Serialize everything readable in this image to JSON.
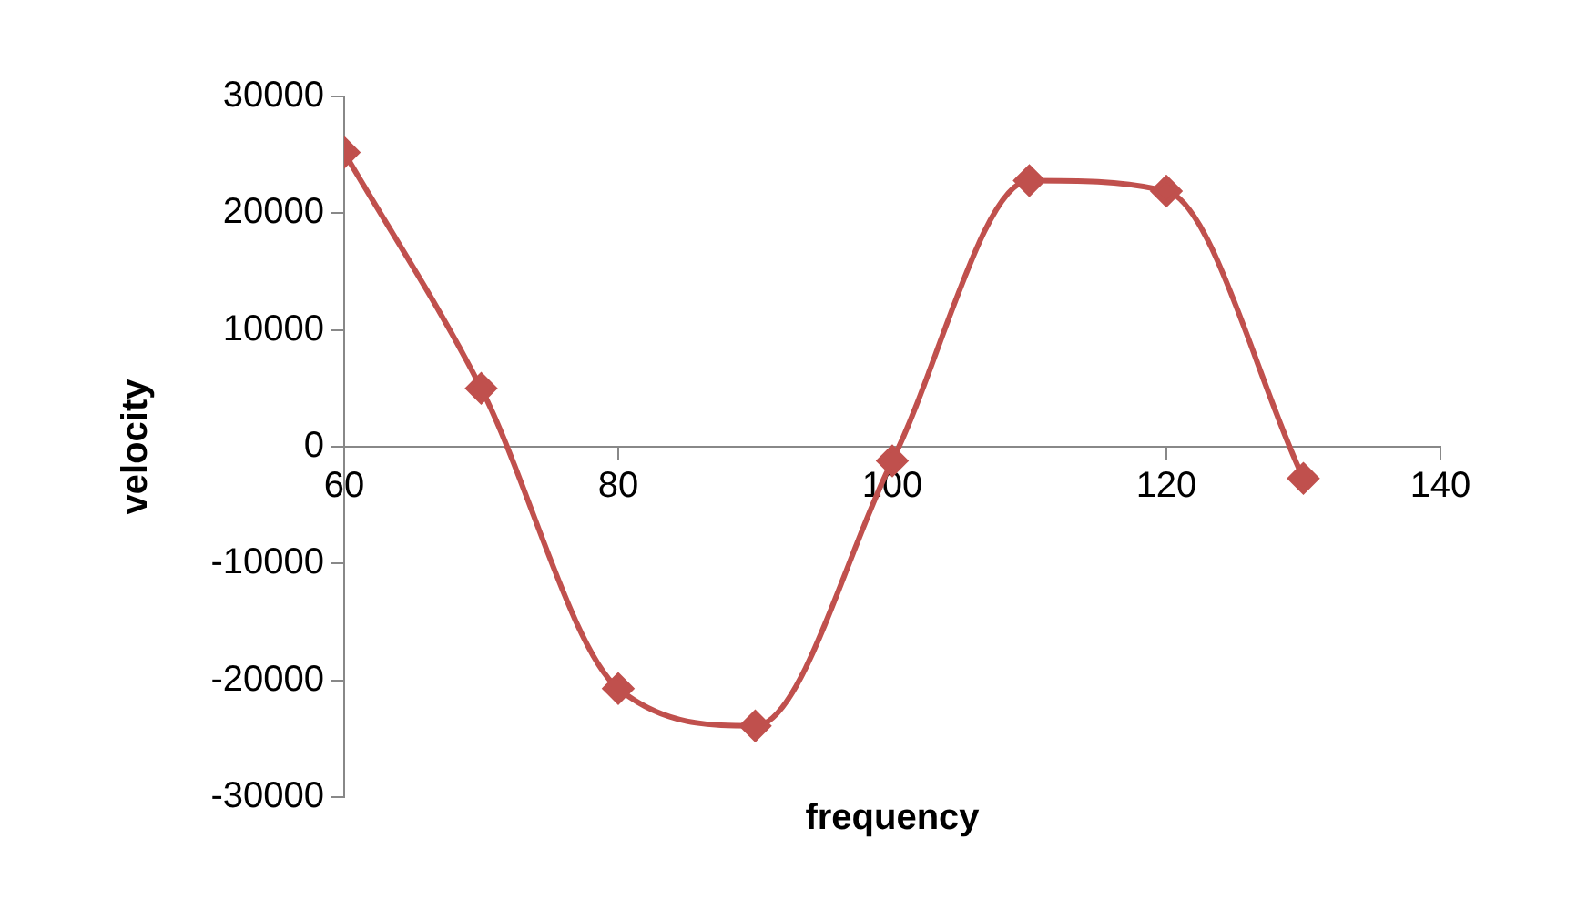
{
  "chart_data": {
    "type": "line",
    "xlabel": "frequency",
    "ylabel": "velocity",
    "x": [
      60,
      70,
      80,
      90,
      100,
      110,
      120,
      130
    ],
    "series": [
      {
        "color": "#c0504d",
        "values": [
          25200,
          5000,
          -20700,
          -23900,
          -1200,
          22800,
          21900,
          -2700
        ]
      }
    ],
    "xlim": [
      60,
      140
    ],
    "xticks": [
      60,
      80,
      100,
      120,
      140
    ],
    "ylim": [
      -30000,
      30000
    ],
    "yticks": [
      -30000,
      -20000,
      -10000,
      0,
      10000,
      20000,
      30000
    ],
    "grid": false,
    "legend": false,
    "marker": "diamond",
    "line_style": "solid"
  }
}
